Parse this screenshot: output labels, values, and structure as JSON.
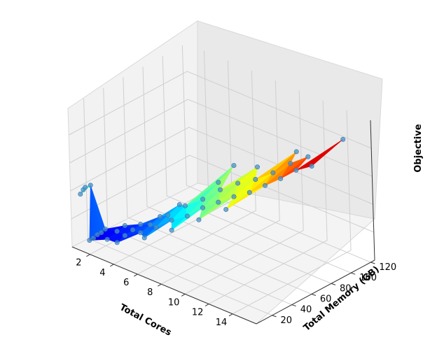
{
  "chart_data": {
    "type": "surface3d",
    "title": "",
    "xlabel": "Total Cores",
    "ylabel": "Total Memory (GB)",
    "zlabel": "Objective",
    "x_ticks": [
      2,
      4,
      6,
      8,
      10,
      12,
      14
    ],
    "y_ticks": [
      20,
      40,
      60,
      80,
      100,
      120
    ],
    "z_ticks": [],
    "xlim": [
      0.5,
      16
    ],
    "ylim": [
      4,
      124
    ],
    "zlim": [
      0,
      1
    ],
    "colormap": "jet",
    "grid": true,
    "series": [
      {
        "description_x": "total cores",
        "x": [
          1,
          1,
          1,
          1.2,
          2,
          2,
          2,
          2,
          2,
          3,
          3,
          3,
          4,
          4,
          4,
          4,
          5,
          5,
          5,
          6,
          6,
          6,
          6,
          7,
          7,
          8,
          8,
          8,
          8,
          8,
          9,
          9,
          10,
          10,
          10,
          10,
          11,
          11,
          12,
          12,
          12,
          12,
          13,
          13,
          14,
          14,
          15,
          16,
          16
        ],
        "y": [
          8,
          11,
          13,
          16,
          4,
          8,
          12,
          16,
          20,
          10,
          20,
          28,
          8,
          16,
          24,
          32,
          20,
          30,
          40,
          12,
          24,
          36,
          48,
          28,
          42,
          16,
          32,
          48,
          64,
          80,
          36,
          54,
          20,
          40,
          60,
          80,
          44,
          66,
          24,
          48,
          72,
          96,
          52,
          78,
          56,
          84,
          60,
          64,
          96
        ],
        "z": [
          0.38,
          0.4,
          0.41,
          0.42,
          0.1,
          0.1,
          0.11,
          0.11,
          0.12,
          0.12,
          0.14,
          0.15,
          0.14,
          0.16,
          0.17,
          0.18,
          0.2,
          0.22,
          0.24,
          0.23,
          0.26,
          0.3,
          0.33,
          0.33,
          0.38,
          0.34,
          0.38,
          0.44,
          0.5,
          0.56,
          0.46,
          0.52,
          0.47,
          0.52,
          0.58,
          0.62,
          0.58,
          0.62,
          0.6,
          0.63,
          0.68,
          0.74,
          0.7,
          0.76,
          0.77,
          0.82,
          0.85,
          0.9,
          0.97
        ]
      }
    ]
  }
}
